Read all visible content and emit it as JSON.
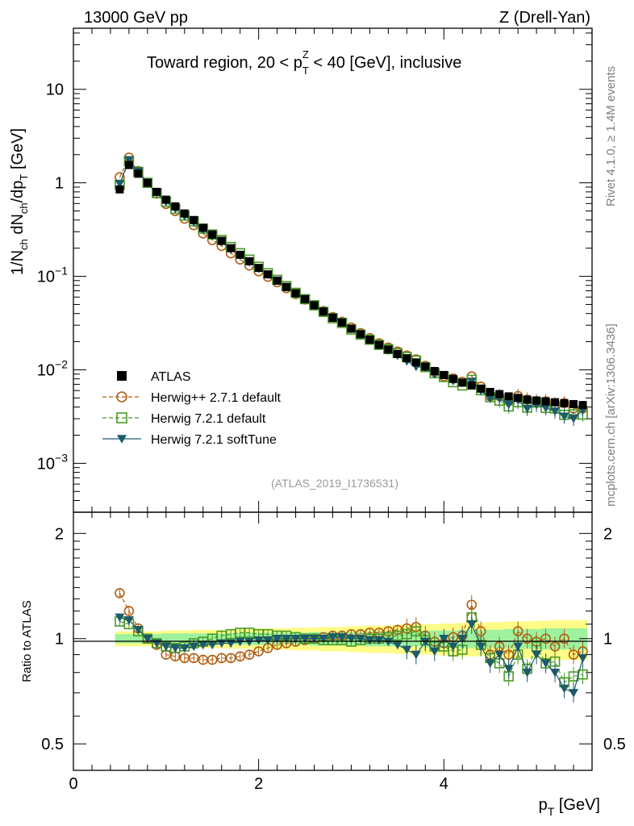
{
  "header": {
    "left": "13000 GeV pp",
    "right": "Z (Drell-Yan)"
  },
  "title": {
    "main": "Toward region, 20 < p",
    "sup": "Z",
    "sub": "T",
    "rest": " < 40 [GeV], inclusive"
  },
  "side_labels": {
    "rivet": "Rivet 4.1.0, ≥ 1.4M events",
    "mcplots": "mcplots.cern.ch [arXiv:1306.3436]"
  },
  "analysis_id": "(ATLAS_2019_I1736531)",
  "ylabel_top": {
    "a": "1/N",
    "a_sub": "ch",
    "b": " dN",
    "b_sub": "ch",
    "c": "/dp",
    "c_sub": "T",
    "d": " [GeV]"
  },
  "ylabel_bottom": "Ratio to ATLAS",
  "xlabel": {
    "main": "p",
    "sub": "T",
    "rest": " [GeV]"
  },
  "legend": [
    {
      "label": "ATLAS",
      "color": "#000000",
      "marker": "filled-square"
    },
    {
      "label": "Herwig++ 2.7.1 default",
      "color": "#b15d12",
      "marker": "open-circle",
      "dash": "dashed"
    },
    {
      "label": "Herwig 7.2.1 default",
      "color": "#4a9a26",
      "marker": "open-square",
      "dash": "dashed"
    },
    {
      "label": "Herwig 7.2.1 softTune",
      "color": "#1c5a6c",
      "marker": "filled-triangle-down",
      "dash": "solid"
    }
  ],
  "top_ticks": {
    "y": [
      {
        "v": 10,
        "base": "10",
        "exp": ""
      },
      {
        "v": 1,
        "base": "1",
        "exp": ""
      },
      {
        "v": 0.1,
        "base": "10",
        "exp": "−1"
      },
      {
        "v": 0.01,
        "base": "10",
        "exp": "−2"
      },
      {
        "v": 0.001,
        "base": "10",
        "exp": "−3"
      }
    ]
  },
  "ratio_ticks": [
    "2",
    "1",
    "0.5"
  ],
  "x_ticks": [
    "0",
    "2",
    "4"
  ],
  "chart_data": {
    "type": "scatter",
    "title": "Toward region, 20 < pT(Z) < 40 [GeV], inclusive",
    "xlabel": "pT [GeV]",
    "ylabel": "1/Nch dNch/dpT [GeV]",
    "xlim": [
      0,
      5.6
    ],
    "ylim_top": [
      0.0003,
      45
    ],
    "ylim_ratio": [
      0.42,
      2.3
    ],
    "x": [
      0.5,
      0.6,
      0.7,
      0.8,
      0.9,
      1.0,
      1.1,
      1.2,
      1.3,
      1.4,
      1.5,
      1.6,
      1.7,
      1.8,
      1.9,
      2.0,
      2.1,
      2.2,
      2.3,
      2.4,
      2.5,
      2.6,
      2.7,
      2.8,
      2.9,
      3.0,
      3.1,
      3.2,
      3.3,
      3.4,
      3.5,
      3.6,
      3.7,
      3.8,
      3.9,
      4.0,
      4.1,
      4.2,
      4.3,
      4.4,
      4.5,
      4.6,
      4.7,
      4.8,
      4.9,
      5.0,
      5.1,
      5.2,
      5.3,
      5.4,
      5.5
    ],
    "atlas": [
      0.85,
      1.55,
      1.25,
      1.0,
      0.8,
      0.66,
      0.56,
      0.47,
      0.4,
      0.33,
      0.28,
      0.24,
      0.2,
      0.17,
      0.145,
      0.123,
      0.105,
      0.09,
      0.077,
      0.066,
      0.057,
      0.049,
      0.042,
      0.036,
      0.032,
      0.0275,
      0.024,
      0.021,
      0.0185,
      0.0165,
      0.0148,
      0.0133,
      0.012,
      0.0108,
      0.0097,
      0.0088,
      0.008,
      0.0073,
      0.0068,
      0.0063,
      0.0058,
      0.0055,
      0.0052,
      0.005,
      0.0048,
      0.0047,
      0.0046,
      0.0045,
      0.0044,
      0.0043,
      0.0042
    ],
    "series": [
      {
        "name": "Herwig++ 2.7.1 default",
        "ratio": [
          1.35,
          1.2,
          1.07,
          1.0,
          0.96,
          0.9,
          0.89,
          0.88,
          0.88,
          0.87,
          0.87,
          0.88,
          0.88,
          0.89,
          0.9,
          0.92,
          0.94,
          0.96,
          0.97,
          0.98,
          0.99,
          1.0,
          1.01,
          1.02,
          1.02,
          1.03,
          1.03,
          1.04,
          1.04,
          1.05,
          1.06,
          1.07,
          1.08,
          1.02,
          0.98,
          0.97,
          1.01,
          1.02,
          1.25,
          1.05,
          0.9,
          0.95,
          0.9,
          1.05,
          1.0,
          0.98,
          1.0,
          0.95,
          1.0,
          0.9,
          0.92
        ]
      },
      {
        "name": "Herwig 7.2.1 default",
        "ratio": [
          1.12,
          1.1,
          1.05,
          1.0,
          0.97,
          0.95,
          0.94,
          0.95,
          0.97,
          0.98,
          1.0,
          1.02,
          1.03,
          1.04,
          1.04,
          1.03,
          1.03,
          1.02,
          1.02,
          1.01,
          1.0,
          1.0,
          0.99,
          0.99,
          0.99,
          0.98,
          0.99,
          1.0,
          1.0,
          1.01,
          1.02,
          1.03,
          1.05,
          0.99,
          0.95,
          0.95,
          0.92,
          0.93,
          1.15,
          0.96,
          0.88,
          0.85,
          0.78,
          0.9,
          0.82,
          0.95,
          0.85,
          0.86,
          0.75,
          0.78,
          0.79
        ]
      },
      {
        "name": "Herwig 7.2.1 softTune",
        "ratio": [
          1.15,
          1.13,
          1.06,
          1.0,
          0.97,
          0.95,
          0.94,
          0.94,
          0.95,
          0.96,
          0.96,
          0.97,
          0.97,
          0.98,
          0.98,
          0.99,
          0.99,
          1.0,
          1.0,
          1.0,
          1.0,
          1.0,
          1.0,
          1.01,
          1.01,
          1.0,
          1.0,
          0.99,
          0.99,
          0.98,
          0.96,
          0.93,
          0.9,
          0.98,
          0.92,
          1.0,
          0.95,
          1.0,
          1.1,
          0.95,
          0.85,
          0.9,
          0.82,
          0.95,
          0.8,
          0.9,
          0.85,
          0.8,
          0.72,
          0.7,
          0.88
        ]
      }
    ],
    "band_green": [
      0.03,
      0.03,
      0.03,
      0.03,
      0.03,
      0.035,
      0.035,
      0.035,
      0.035,
      0.035,
      0.035,
      0.035,
      0.035,
      0.04,
      0.04,
      0.04,
      0.04,
      0.04,
      0.04,
      0.04,
      0.04,
      0.045,
      0.045,
      0.045,
      0.045,
      0.045,
      0.045,
      0.05,
      0.05,
      0.05,
      0.05,
      0.05,
      0.05,
      0.055,
      0.055,
      0.055,
      0.055,
      0.06,
      0.06,
      0.06,
      0.06,
      0.06,
      0.065,
      0.065,
      0.065,
      0.065,
      0.07,
      0.07,
      0.07,
      0.07,
      0.07
    ],
    "band_yellow": [
      0.05,
      0.05,
      0.05,
      0.05,
      0.05,
      0.055,
      0.055,
      0.055,
      0.06,
      0.06,
      0.06,
      0.06,
      0.065,
      0.065,
      0.065,
      0.07,
      0.07,
      0.07,
      0.07,
      0.075,
      0.075,
      0.075,
      0.08,
      0.08,
      0.08,
      0.085,
      0.085,
      0.09,
      0.09,
      0.09,
      0.095,
      0.095,
      0.1,
      0.1,
      0.1,
      0.105,
      0.105,
      0.11,
      0.11,
      0.11,
      0.115,
      0.115,
      0.12,
      0.12,
      0.12,
      0.125,
      0.125,
      0.13,
      0.13,
      0.13,
      0.13
    ]
  }
}
